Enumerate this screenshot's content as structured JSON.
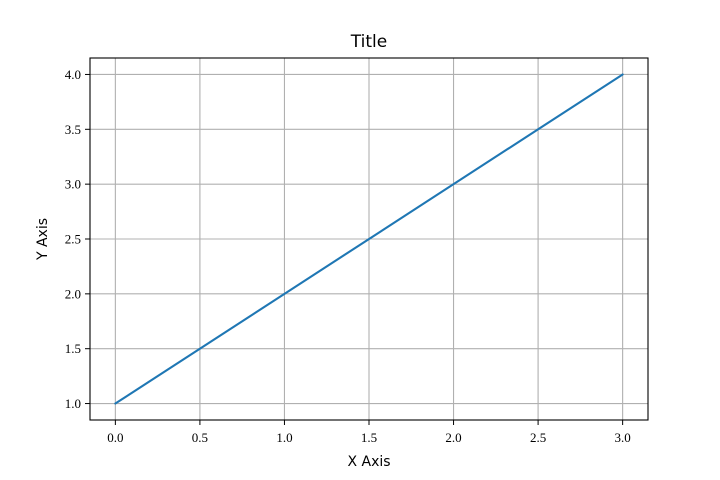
{
  "chart_data": {
    "type": "line",
    "title": "Title",
    "xlabel": "X Axis",
    "ylabel": "Y Axis",
    "x": [
      0,
      1,
      2,
      3
    ],
    "series": [
      {
        "values": [
          1,
          2,
          3,
          4
        ]
      }
    ],
    "xlim": [
      -0.15,
      3.15
    ],
    "ylim": [
      0.85,
      4.15
    ],
    "x_ticks": [
      0.0,
      0.5,
      1.0,
      1.5,
      2.0,
      2.5,
      3.0
    ],
    "x_tick_labels": [
      "0.0",
      "0.5",
      "1.0",
      "1.5",
      "2.0",
      "2.5",
      "3.0"
    ],
    "y_ticks": [
      1.0,
      1.5,
      2.0,
      2.5,
      3.0,
      3.5,
      4.0
    ],
    "y_tick_labels": [
      "1.0",
      "1.5",
      "2.0",
      "2.5",
      "3.0",
      "3.5",
      "4.0"
    ],
    "grid": true,
    "line_color": "#1f77b4",
    "grid_color": "#b0b0b0"
  }
}
